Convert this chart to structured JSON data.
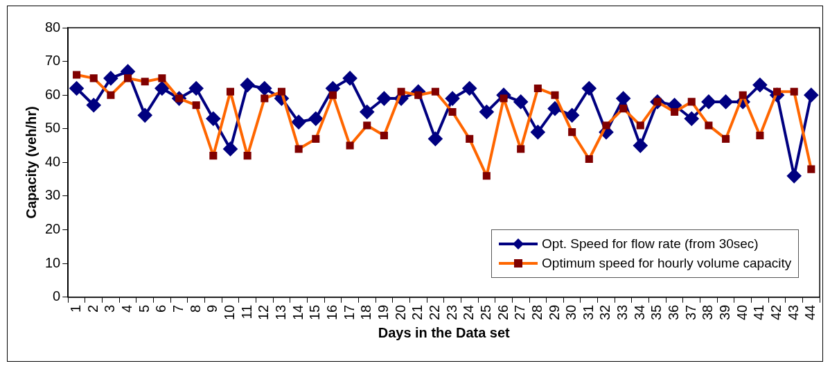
{
  "chart_data": {
    "type": "line",
    "xlabel": "Days in the Data set",
    "ylabel": "Capacity (veh/hr)",
    "categories": [
      "1",
      "2",
      "3",
      "4",
      "5",
      "6",
      "7",
      "8",
      "9",
      "10",
      "11",
      "12",
      "13",
      "14",
      "15",
      "16",
      "17",
      "18",
      "19",
      "20",
      "21",
      "22",
      "23",
      "24",
      "25",
      "26",
      "27",
      "28",
      "29",
      "30",
      "31",
      "32",
      "33",
      "34",
      "35",
      "36",
      "37",
      "38",
      "39",
      "40",
      "41",
      "42",
      "43",
      "44"
    ],
    "ylim": [
      0,
      80
    ],
    "yticks": [
      0,
      10,
      20,
      30,
      40,
      50,
      60,
      70,
      80
    ],
    "grid": false,
    "legend": "bottom right",
    "series": [
      {
        "name": "Opt. Speed for flow rate (from 30sec)",
        "color": "#000080",
        "marker": "diamond",
        "values": [
          62,
          57,
          65,
          67,
          54,
          62,
          59,
          62,
          53,
          44,
          63,
          62,
          59,
          52,
          53,
          62,
          65,
          55,
          59,
          59,
          61,
          47,
          59,
          62,
          55,
          60,
          58,
          49,
          56,
          54,
          62,
          49,
          59,
          45,
          58,
          57,
          53,
          58,
          58,
          58,
          63,
          60,
          36,
          60
        ]
      },
      {
        "name": "Optimum speed for hourly volume capacity",
        "color": "#ff6600",
        "marker": "square",
        "values": [
          66,
          65,
          60,
          65,
          64,
          65,
          59,
          57,
          42,
          61,
          42,
          59,
          61,
          44,
          47,
          60,
          45,
          51,
          48,
          61,
          60,
          61,
          55,
          47,
          36,
          59,
          44,
          62,
          60,
          49,
          41,
          51,
          56,
          51,
          58,
          55,
          58,
          51,
          47,
          60,
          48,
          61,
          61,
          38
        ]
      }
    ]
  }
}
